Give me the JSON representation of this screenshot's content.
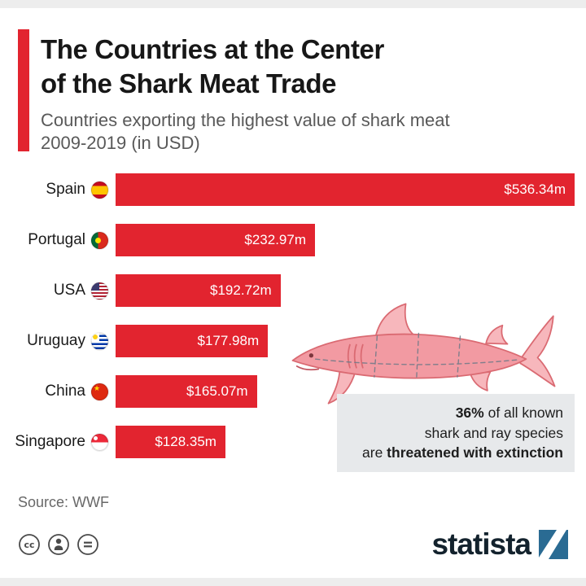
{
  "colors": {
    "bar": "#e2242f",
    "accent": "#e2242f",
    "annotation_bg": "#e7e9eb",
    "brand_blue": "#2a6b93",
    "brand_text": "#13222d"
  },
  "header": {
    "title_line1": "The Countries at the Center",
    "title_line2": "of the Shark Meat Trade",
    "subtitle_line1": "Countries exporting the highest value of shark meat",
    "subtitle_line2": "2009-2019 (in USD)"
  },
  "chart_data": {
    "type": "bar",
    "orientation": "horizontal",
    "title": "The Countries at the Center of the Shark Meat Trade",
    "subtitle": "Countries exporting the highest value of shark meat 2009-2019 (in USD)",
    "categories": [
      "Spain",
      "Portugal",
      "USA",
      "Uruguay",
      "China",
      "Singapore"
    ],
    "values": [
      536.34,
      232.97,
      192.72,
      177.98,
      165.07,
      128.35
    ],
    "value_labels": [
      "$536.34m",
      "$232.97m",
      "$192.72m",
      "$177.98m",
      "$165.07m",
      "$128.35m"
    ],
    "flags": [
      "es",
      "pt",
      "us",
      "uy",
      "cn",
      "sg"
    ],
    "xlim": [
      0,
      536.34
    ],
    "unit": "USD millions",
    "bar_color": "#e2242f",
    "legend": false,
    "grid": false
  },
  "annotation": {
    "line1_bold": "36%",
    "line1_rest": " of all known",
    "line2": "shark and ray species",
    "line3_rest": "are ",
    "line3_bold": "threatened with extinction"
  },
  "source": "Source: WWF",
  "footer": {
    "brand": "statista",
    "license_icons": [
      "cc",
      "by",
      "nd"
    ]
  }
}
